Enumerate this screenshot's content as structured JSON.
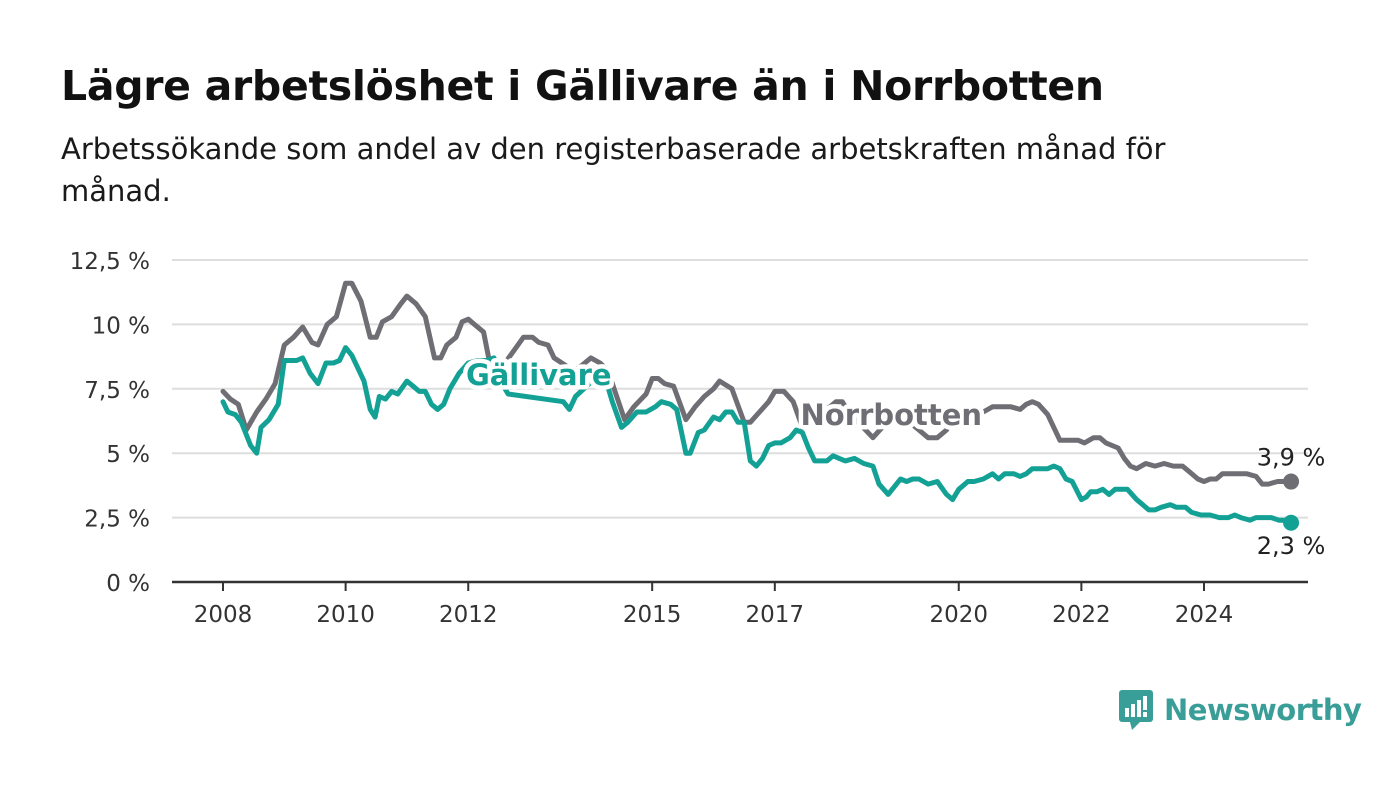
{
  "header": {
    "title": "Lägre arbetslöshet i Gällivare än i Norrbotten",
    "subtitle": "Arbetssökande som andel av den registerbaserade arbetskraften månad för månad."
  },
  "brand": {
    "name": "Newsworthy",
    "color": "#3a9e98"
  },
  "chart_data": {
    "type": "line",
    "title": "Lägre arbetslöshet i Gällivare än i Norrbotten",
    "subtitle": "Arbetssökande som andel av den registerbaserade arbetskraften månad för månad.",
    "xlabel": "",
    "ylabel": "",
    "x_range": [
      2007.2,
      2026.2
    ],
    "ylim": [
      0,
      12.5
    ],
    "y_ticks": [
      {
        "value": 0,
        "label": "0 %"
      },
      {
        "value": 2.5,
        "label": "2,5 %"
      },
      {
        "value": 5,
        "label": "5 %"
      },
      {
        "value": 7.5,
        "label": "7,5 %"
      },
      {
        "value": 10,
        "label": "10 %"
      },
      {
        "value": 12.5,
        "label": "12,5 %"
      }
    ],
    "x_ticks": [
      {
        "value": 2008,
        "label": "2008"
      },
      {
        "value": 2010,
        "label": "2010"
      },
      {
        "value": 2012,
        "label": "2012"
      },
      {
        "value": 2015,
        "label": "2015"
      },
      {
        "value": 2017,
        "label": "2017"
      },
      {
        "value": 2020,
        "label": "2020"
      },
      {
        "value": 2022,
        "label": "2022"
      },
      {
        "value": 2024,
        "label": "2024"
      }
    ],
    "grid": true,
    "series": [
      {
        "name": "Norrbotten",
        "color": "#6f6e74",
        "end_label": "3,9 %",
        "points": [
          [
            2008.0,
            7.4
          ],
          [
            2008.12,
            7.1
          ],
          [
            2008.25,
            6.9
          ],
          [
            2008.38,
            5.9
          ],
          [
            2008.55,
            6.6
          ],
          [
            2008.7,
            7.1
          ],
          [
            2008.85,
            7.7
          ],
          [
            2009.0,
            9.2
          ],
          [
            2009.15,
            9.5
          ],
          [
            2009.3,
            9.9
          ],
          [
            2009.45,
            9.3
          ],
          [
            2009.55,
            9.2
          ],
          [
            2009.7,
            10.0
          ],
          [
            2009.85,
            10.3
          ],
          [
            2010.0,
            11.6
          ],
          [
            2010.1,
            11.6
          ],
          [
            2010.25,
            10.9
          ],
          [
            2010.4,
            9.5
          ],
          [
            2010.5,
            9.5
          ],
          [
            2010.6,
            10.1
          ],
          [
            2010.75,
            10.3
          ],
          [
            2010.9,
            10.8
          ],
          [
            2011.0,
            11.1
          ],
          [
            2011.15,
            10.8
          ],
          [
            2011.3,
            10.3
          ],
          [
            2011.45,
            8.7
          ],
          [
            2011.55,
            8.7
          ],
          [
            2011.65,
            9.2
          ],
          [
            2011.8,
            9.5
          ],
          [
            2011.9,
            10.1
          ],
          [
            2012.0,
            10.2
          ],
          [
            2012.1,
            10.0
          ],
          [
            2012.25,
            9.7
          ],
          [
            2012.35,
            8.5
          ],
          [
            2012.5,
            8.0
          ],
          [
            2012.6,
            8.5
          ],
          [
            2012.75,
            9.0
          ],
          [
            2012.9,
            9.5
          ],
          [
            2013.05,
            9.5
          ],
          [
            2013.15,
            9.3
          ],
          [
            2013.3,
            9.2
          ],
          [
            2013.4,
            8.7
          ],
          [
            2013.72,
            8.2
          ],
          [
            2013.85,
            8.4
          ],
          [
            2014.0,
            8.7
          ],
          [
            2014.15,
            8.5
          ],
          [
            2014.28,
            8.2
          ],
          [
            2014.55,
            6.3
          ],
          [
            2014.7,
            6.8
          ],
          [
            2014.9,
            7.3
          ],
          [
            2015.0,
            7.9
          ],
          [
            2015.1,
            7.9
          ],
          [
            2015.2,
            7.7
          ],
          [
            2015.35,
            7.6
          ],
          [
            2015.55,
            6.3
          ],
          [
            2015.7,
            6.8
          ],
          [
            2015.85,
            7.2
          ],
          [
            2016.0,
            7.5
          ],
          [
            2016.1,
            7.8
          ],
          [
            2016.3,
            7.5
          ],
          [
            2016.5,
            6.2
          ],
          [
            2016.6,
            6.2
          ],
          [
            2016.75,
            6.6
          ],
          [
            2016.9,
            7.0
          ],
          [
            2017.0,
            7.4
          ],
          [
            2017.15,
            7.4
          ],
          [
            2017.3,
            7.0
          ],
          [
            2017.45,
            6.0
          ],
          [
            2017.6,
            6.2
          ],
          [
            2017.75,
            6.6
          ],
          [
            2017.9,
            6.8
          ],
          [
            2018.0,
            7.0
          ],
          [
            2018.1,
            7.0
          ],
          [
            2018.2,
            6.6
          ],
          [
            2018.6,
            5.6
          ],
          [
            2018.75,
            6.0
          ],
          [
            2018.9,
            6.3
          ],
          [
            2019.05,
            6.5
          ],
          [
            2019.2,
            6.2
          ],
          [
            2019.35,
            5.9
          ],
          [
            2019.5,
            5.6
          ],
          [
            2019.65,
            5.6
          ],
          [
            2019.8,
            5.9
          ],
          [
            2019.9,
            6.3
          ],
          [
            2020.25,
            6.8
          ],
          [
            2020.4,
            6.6
          ],
          [
            2020.55,
            6.8
          ],
          [
            2020.7,
            6.8
          ],
          [
            2020.85,
            6.8
          ],
          [
            2021.0,
            6.7
          ],
          [
            2021.1,
            6.9
          ],
          [
            2021.2,
            7.0
          ],
          [
            2021.3,
            6.9
          ],
          [
            2021.45,
            6.5
          ],
          [
            2021.55,
            6.0
          ],
          [
            2021.65,
            5.5
          ],
          [
            2021.8,
            5.5
          ],
          [
            2021.95,
            5.5
          ],
          [
            2022.05,
            5.4
          ],
          [
            2022.2,
            5.6
          ],
          [
            2022.3,
            5.6
          ],
          [
            2022.4,
            5.4
          ],
          [
            2022.6,
            5.2
          ],
          [
            2022.7,
            4.8
          ],
          [
            2022.8,
            4.5
          ],
          [
            2022.9,
            4.4
          ],
          [
            2023.05,
            4.6
          ],
          [
            2023.2,
            4.5
          ],
          [
            2023.35,
            4.6
          ],
          [
            2023.5,
            4.5
          ],
          [
            2023.65,
            4.5
          ],
          [
            2023.75,
            4.3
          ],
          [
            2023.9,
            4.0
          ],
          [
            2024.0,
            3.9
          ],
          [
            2024.1,
            4.0
          ],
          [
            2024.2,
            4.0
          ],
          [
            2024.3,
            4.2
          ],
          [
            2024.5,
            4.2
          ],
          [
            2024.7,
            4.2
          ],
          [
            2024.85,
            4.1
          ],
          [
            2024.95,
            3.8
          ],
          [
            2025.05,
            3.8
          ],
          [
            2025.2,
            3.9
          ],
          [
            2025.3,
            3.9
          ],
          [
            2025.42,
            3.9
          ]
        ]
      },
      {
        "name": "Gällivare",
        "color": "#14a195",
        "end_label": "2,3 %",
        "points": [
          [
            2008.0,
            7.0
          ],
          [
            2008.08,
            6.6
          ],
          [
            2008.2,
            6.5
          ],
          [
            2008.3,
            6.2
          ],
          [
            2008.45,
            5.3
          ],
          [
            2008.55,
            5.0
          ],
          [
            2008.62,
            6.0
          ],
          [
            2008.75,
            6.3
          ],
          [
            2008.9,
            6.9
          ],
          [
            2009.0,
            8.6
          ],
          [
            2009.1,
            8.6
          ],
          [
            2009.2,
            8.6
          ],
          [
            2009.3,
            8.7
          ],
          [
            2009.42,
            8.1
          ],
          [
            2009.55,
            7.7
          ],
          [
            2009.68,
            8.5
          ],
          [
            2009.8,
            8.5
          ],
          [
            2009.9,
            8.6
          ],
          [
            2010.0,
            9.1
          ],
          [
            2010.1,
            8.8
          ],
          [
            2010.2,
            8.3
          ],
          [
            2010.3,
            7.8
          ],
          [
            2010.4,
            6.7
          ],
          [
            2010.48,
            6.4
          ],
          [
            2010.55,
            7.2
          ],
          [
            2010.65,
            7.1
          ],
          [
            2010.75,
            7.4
          ],
          [
            2010.85,
            7.3
          ],
          [
            2011.0,
            7.8
          ],
          [
            2011.1,
            7.6
          ],
          [
            2011.2,
            7.4
          ],
          [
            2011.3,
            7.4
          ],
          [
            2011.4,
            6.9
          ],
          [
            2011.5,
            6.7
          ],
          [
            2011.6,
            6.9
          ],
          [
            2011.7,
            7.5
          ],
          [
            2011.85,
            8.1
          ],
          [
            2012.0,
            8.5
          ],
          [
            2012.15,
            8.6
          ],
          [
            2012.3,
            8.6
          ],
          [
            2012.42,
            8.7
          ],
          [
            2012.55,
            7.7
          ],
          [
            2012.65,
            7.3
          ],
          [
            2013.55,
            7.0
          ],
          [
            2013.65,
            6.7
          ],
          [
            2013.75,
            7.2
          ],
          [
            2014.2,
            8.2
          ],
          [
            2014.35,
            7.0
          ],
          [
            2014.5,
            6.0
          ],
          [
            2014.6,
            6.2
          ],
          [
            2014.75,
            6.6
          ],
          [
            2014.9,
            6.6
          ],
          [
            2015.05,
            6.8
          ],
          [
            2015.15,
            7.0
          ],
          [
            2015.3,
            6.9
          ],
          [
            2015.4,
            6.7
          ],
          [
            2015.55,
            5.0
          ],
          [
            2015.62,
            5.0
          ],
          [
            2015.75,
            5.8
          ],
          [
            2015.85,
            5.9
          ],
          [
            2016.0,
            6.4
          ],
          [
            2016.1,
            6.3
          ],
          [
            2016.2,
            6.6
          ],
          [
            2016.3,
            6.6
          ],
          [
            2016.4,
            6.2
          ],
          [
            2016.5,
            6.2
          ],
          [
            2016.6,
            4.7
          ],
          [
            2016.7,
            4.5
          ],
          [
            2016.8,
            4.8
          ],
          [
            2016.9,
            5.3
          ],
          [
            2017.0,
            5.4
          ],
          [
            2017.1,
            5.4
          ],
          [
            2017.25,
            5.6
          ],
          [
            2017.35,
            5.9
          ],
          [
            2017.45,
            5.8
          ],
          [
            2017.55,
            5.2
          ],
          [
            2017.65,
            4.7
          ],
          [
            2017.75,
            4.7
          ],
          [
            2017.85,
            4.7
          ],
          [
            2017.95,
            4.9
          ],
          [
            2018.05,
            4.8
          ],
          [
            2018.15,
            4.7
          ],
          [
            2018.3,
            4.8
          ],
          [
            2018.45,
            4.6
          ],
          [
            2018.6,
            4.5
          ],
          [
            2018.7,
            3.8
          ],
          [
            2018.85,
            3.4
          ],
          [
            2018.95,
            3.7
          ],
          [
            2019.05,
            4.0
          ],
          [
            2019.15,
            3.9
          ],
          [
            2019.25,
            4.0
          ],
          [
            2019.35,
            4.0
          ],
          [
            2019.5,
            3.8
          ],
          [
            2019.65,
            3.9
          ],
          [
            2019.8,
            3.4
          ],
          [
            2019.9,
            3.2
          ],
          [
            2020.0,
            3.6
          ],
          [
            2020.15,
            3.9
          ],
          [
            2020.25,
            3.9
          ],
          [
            2020.4,
            4.0
          ],
          [
            2020.55,
            4.2
          ],
          [
            2020.65,
            4.0
          ],
          [
            2020.75,
            4.2
          ],
          [
            2020.9,
            4.2
          ],
          [
            2021.0,
            4.1
          ],
          [
            2021.1,
            4.2
          ],
          [
            2021.2,
            4.4
          ],
          [
            2021.35,
            4.4
          ],
          [
            2021.45,
            4.4
          ],
          [
            2021.55,
            4.5
          ],
          [
            2021.65,
            4.4
          ],
          [
            2021.75,
            4.0
          ],
          [
            2021.85,
            3.9
          ],
          [
            2022.0,
            3.2
          ],
          [
            2022.08,
            3.3
          ],
          [
            2022.15,
            3.5
          ],
          [
            2022.25,
            3.5
          ],
          [
            2022.35,
            3.6
          ],
          [
            2022.45,
            3.4
          ],
          [
            2022.55,
            3.6
          ],
          [
            2022.65,
            3.6
          ],
          [
            2022.75,
            3.6
          ],
          [
            2022.9,
            3.2
          ],
          [
            2023.0,
            3.0
          ],
          [
            2023.1,
            2.8
          ],
          [
            2023.2,
            2.8
          ],
          [
            2023.3,
            2.9
          ],
          [
            2023.45,
            3.0
          ],
          [
            2023.55,
            2.9
          ],
          [
            2023.7,
            2.9
          ],
          [
            2023.8,
            2.7
          ],
          [
            2023.95,
            2.6
          ],
          [
            2024.1,
            2.6
          ],
          [
            2024.25,
            2.5
          ],
          [
            2024.4,
            2.5
          ],
          [
            2024.5,
            2.6
          ],
          [
            2024.6,
            2.5
          ],
          [
            2024.75,
            2.4
          ],
          [
            2024.85,
            2.5
          ],
          [
            2025.0,
            2.5
          ],
          [
            2025.1,
            2.5
          ],
          [
            2025.22,
            2.4
          ],
          [
            2025.32,
            2.4
          ],
          [
            2025.42,
            2.3
          ]
        ]
      }
    ],
    "annotations": [
      {
        "series": "Gällivare",
        "text": "Gällivare",
        "x": 2013.15,
        "y": 7.65,
        "color": "#14a195"
      },
      {
        "series": "Norrbotten",
        "text": "Norrbotten",
        "x": 2018.9,
        "y": 6.1,
        "color": "#6f6e74"
      }
    ]
  }
}
